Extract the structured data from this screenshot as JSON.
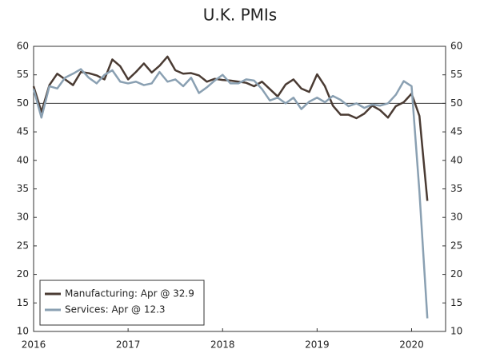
{
  "chart_data": {
    "type": "line",
    "title": "U.K. PMIs",
    "x": [
      2016,
      2016.083,
      2016.167,
      2016.25,
      2016.333,
      2016.417,
      2016.5,
      2016.583,
      2016.667,
      2016.75,
      2016.833,
      2016.917,
      2017,
      2017.083,
      2017.167,
      2017.25,
      2017.333,
      2017.417,
      2017.5,
      2017.583,
      2017.667,
      2017.75,
      2017.833,
      2017.917,
      2018,
      2018.083,
      2018.167,
      2018.25,
      2018.333,
      2018.417,
      2018.5,
      2018.583,
      2018.667,
      2018.75,
      2018.833,
      2018.917,
      2019,
      2019.083,
      2019.167,
      2019.25,
      2019.333,
      2019.417,
      2019.5,
      2019.583,
      2019.667,
      2019.75,
      2019.833,
      2019.917,
      2020,
      2020.083,
      2020.167
    ],
    "series": [
      {
        "name": "Manufacturing: Apr @ 32.9",
        "color": "#4a3b33",
        "values": [
          53,
          48.5,
          53.2,
          55.2,
          54.2,
          53.2,
          55.5,
          55.3,
          54.9,
          54.2,
          57.7,
          56.5,
          54.2,
          55.5,
          57,
          55.4,
          56.6,
          58.2,
          55.8,
          55.2,
          55.3,
          54.9,
          53.8,
          54.3,
          54.1,
          54,
          53.8,
          53.6,
          53,
          53.8,
          52.5,
          51.2,
          53.3,
          54.2,
          52.6,
          52,
          55.1,
          53,
          49.6,
          48,
          48,
          47.4,
          48.2,
          49.6,
          48.8,
          47.5,
          49.5,
          50.2,
          51.7,
          47.8,
          32.9
        ]
      },
      {
        "name": "Services: Apr @ 12.3",
        "color": "#8aa0b2",
        "values": [
          52.5,
          47.5,
          53,
          52.6,
          54.5,
          55.2,
          56,
          54.5,
          53.5,
          55,
          55.8,
          53.8,
          53.5,
          53.8,
          53.2,
          53.5,
          55.5,
          53.8,
          54.2,
          53,
          54.5,
          51.8,
          52.8,
          54,
          55,
          53.5,
          53.5,
          54.2,
          54,
          52.5,
          50.5,
          51,
          50,
          51,
          49,
          50.3,
          51,
          50.2,
          51.3,
          50.6,
          49.5,
          50,
          49.2,
          49.8,
          49.6,
          50,
          51.5,
          53.9,
          53,
          34.5,
          12.3
        ]
      }
    ],
    "xlim": [
      2016,
      2020.36
    ],
    "xticks": [
      2016,
      2017,
      2018,
      2019,
      2020
    ],
    "ylim": [
      10,
      60
    ],
    "yticks": [
      10,
      15,
      20,
      25,
      30,
      35,
      40,
      45,
      50,
      55,
      60
    ],
    "y2lim": [
      10,
      60
    ],
    "y2ticks": [
      10,
      15,
      20,
      25,
      30,
      35,
      40,
      45,
      50,
      55,
      60
    ],
    "reference_line": 50,
    "legend": "lower left"
  }
}
